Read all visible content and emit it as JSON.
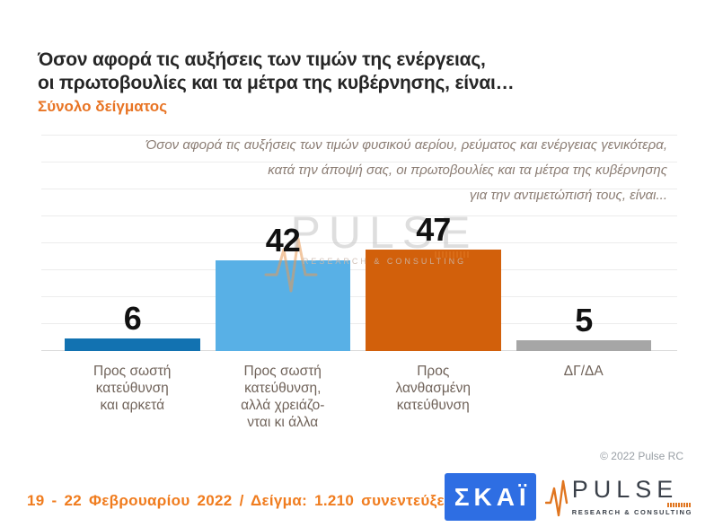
{
  "title": "Όσον αφορά τις αυξήσεις των τιμών της ενέργειας,\nοι πρωτοβουλίες και τα μέτρα της κυβέρνησης, είναι…",
  "subtitle": "Σύνολο δείγματος",
  "annotation": "Όσον αφορά τις αυξήσεις των τιμών φυσικού αερίου, ρεύματος και ενέργειας γενικότερα,\nκατά την άποψή σας, οι πρωτοβουλίες και τα μέτρα της κυβέρνησης\nγια την αντιμετώπισή τους, είναι...",
  "chart_data": {
    "type": "bar",
    "title": "Όσον αφορά τις αυξήσεις των τιμών της ενέργειας, οι πρωτοβουλίες και τα μέτρα της κυβέρνησης, είναι…",
    "subtitle": "Σύνολο δείγματος",
    "categories": [
      "Προς σωστή\nκατεύθυνση\nκαι αρκετά",
      "Προς σωστή\nκατεύθυνση,\nαλλά χρειάζο-\nνται κι άλλα",
      "Προς\nλανθασμένη\nκατεύθυνση",
      "ΔΓ/ΔΑ"
    ],
    "values": [
      6,
      42,
      47,
      5
    ],
    "bar_colors": [
      "#1272b1",
      "#58b0e6",
      "#d2600b",
      "#a6a6a6"
    ],
    "value_label_color": "#111111",
    "xlabel": "",
    "ylabel": "",
    "ylim": [
      0,
      100
    ],
    "grid": true,
    "legend": "none"
  },
  "watermark": {
    "word": "PULSE",
    "tagline": "RESEARCH & CONSULTING",
    "pulse_icon_color": "#e0751f"
  },
  "copyright": "© 2022 Pulse RC",
  "footer": {
    "date_sample": "19 - 22  Φεβρουαρίου  2022  /  Δείγμα:  1.210 συνεντεύξεις",
    "accent_color": "#f07c1e"
  },
  "logos": {
    "skai_label": "ΣΚΑΪ",
    "skai_color": "#2e6ee3",
    "pulse_word": "PULSE",
    "pulse_tagline": "RESEARCH & CONSULTING"
  }
}
